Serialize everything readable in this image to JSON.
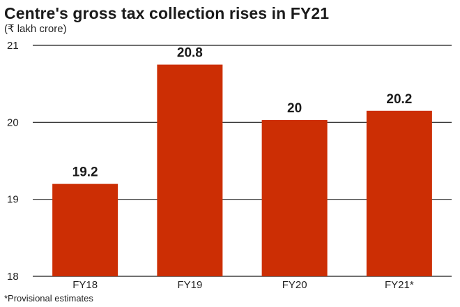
{
  "chart_data": {
    "type": "bar",
    "title": "Centre's gross tax collection rises in FY21",
    "subtitle": "(₹ lakh crore)",
    "footnote": "*Provisional estimates",
    "categories": [
      "FY18",
      "FY19",
      "FY20",
      "FY21*"
    ],
    "values": [
      19.2,
      20.75,
      20.03,
      20.15
    ],
    "data_labels": [
      "19.2",
      "20.8",
      "20",
      "20.2"
    ],
    "y_ticks": [
      18,
      19,
      20,
      21
    ],
    "ylim": [
      18,
      21
    ],
    "grid": true,
    "legend": "none",
    "colors": {
      "bar": "#cc2e04",
      "gridline": "#1a1a1a",
      "text": "#1a1a1a"
    }
  }
}
